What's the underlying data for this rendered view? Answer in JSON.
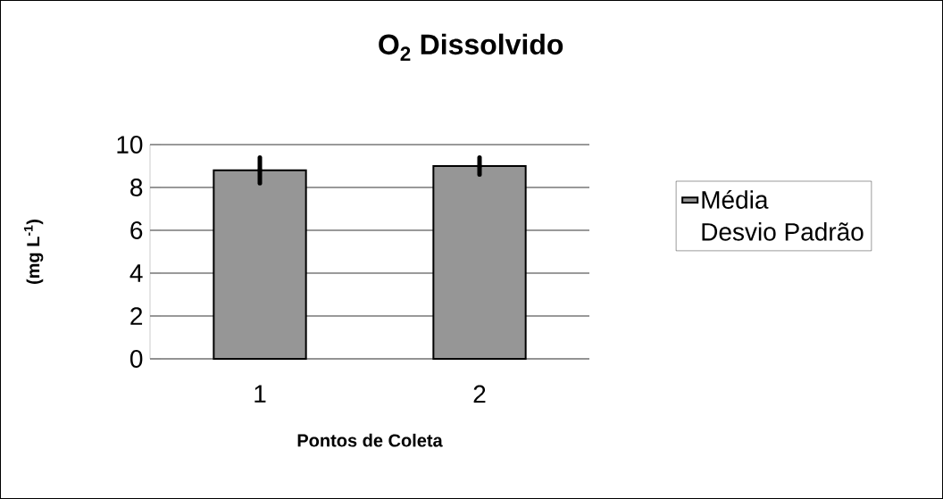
{
  "chart_data": {
    "type": "bar",
    "title": "O$_{2}$ Dissolvido",
    "xlabel": "Pontos de Coleta",
    "ylabel": "(mg L$^{-1}$)",
    "categories": [
      "1",
      "2"
    ],
    "series": [
      {
        "name": "Média",
        "color": "#969696",
        "values": [
          8.8,
          9.0
        ],
        "errors": [
          0.6,
          0.4
        ]
      }
    ],
    "ylim": [
      0,
      10
    ],
    "yticks": [
      0,
      2,
      4,
      6,
      8,
      10
    ],
    "grid": "y",
    "legend": "right",
    "annotations": [
      "Desvio Padrão"
    ]
  }
}
